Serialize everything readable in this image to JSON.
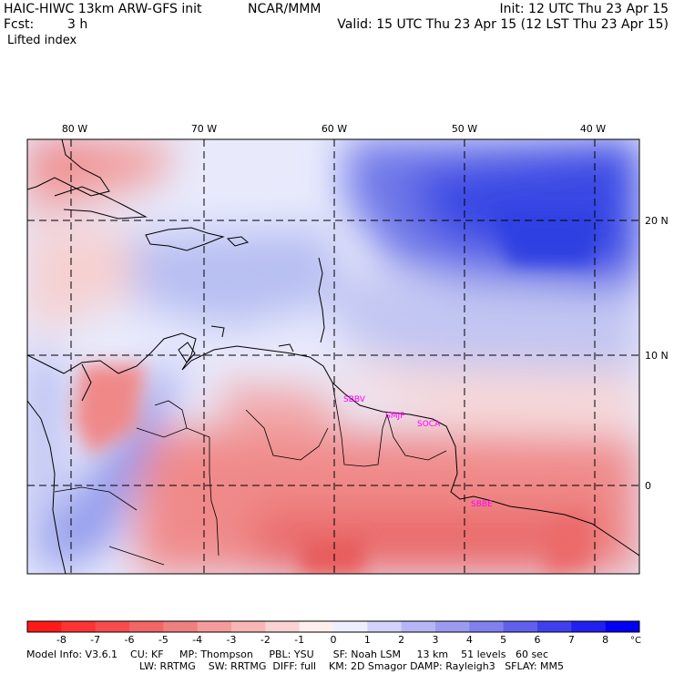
{
  "header": {
    "model_title": "HAIC-HIWC 13km ARW-GFS init",
    "org": "NCAR/MMM",
    "fcst_label": "Fcst:",
    "fcst_value": "3 h",
    "init": "Init: 12 UTC Thu 23 Apr 15",
    "valid": "Valid: 15 UTC Thu 23 Apr 15 (12 LST Thu 23 Apr 15)",
    "field": "Lifted index"
  },
  "map": {
    "lon_labels": [
      {
        "lon": -80,
        "text": "80 W"
      },
      {
        "lon": -70,
        "text": "70 W"
      },
      {
        "lon": -60,
        "text": "60 W"
      },
      {
        "lon": -50,
        "text": "50 W"
      },
      {
        "lon": -40,
        "text": "40 W"
      }
    ],
    "lat_labels": [
      {
        "lat": 20,
        "text": "20 N"
      },
      {
        "lat": 10,
        "text": "10 N"
      },
      {
        "lat": 0,
        "text": "0"
      }
    ],
    "stations": [
      {
        "text": "SBBV"
      },
      {
        "text": "SMJP"
      },
      {
        "text": "SOCA"
      },
      {
        "text": "SBBE"
      }
    ],
    "station_color": "#ff00ff"
  },
  "colorbar": {
    "labels": [
      "-8",
      "-7",
      "-6",
      "-5",
      "-4",
      "-3",
      "-2",
      "-1",
      "0",
      "1",
      "2",
      "3",
      "4",
      "5",
      "6",
      "7",
      "8"
    ],
    "unit": "°C",
    "colors": [
      "#ff1a1a",
      "#ff3333",
      "#f84c4c",
      "#f26666",
      "#ef8080",
      "#f59b9b",
      "#f8b6b6",
      "#fbd2d2",
      "#ffeeee",
      "#eeeeff",
      "#d2d2fb",
      "#b6b6f6",
      "#9b9bf2",
      "#8080ef",
      "#6060ec",
      "#4040ee",
      "#2020f0",
      "#0000f5"
    ]
  },
  "footer": {
    "line1": "Model Info: V3.6.1    CU: KF     MP: Thompson     PBL: YSU      SF: Noah LSM     13 km    51 levels   60 sec",
    "line2": "LW: RRTMG    SW: RRTMG  DIFF: full    KM: 2D Smagor DAMP: Rayleigh3   SFLAY: MM5"
  }
}
